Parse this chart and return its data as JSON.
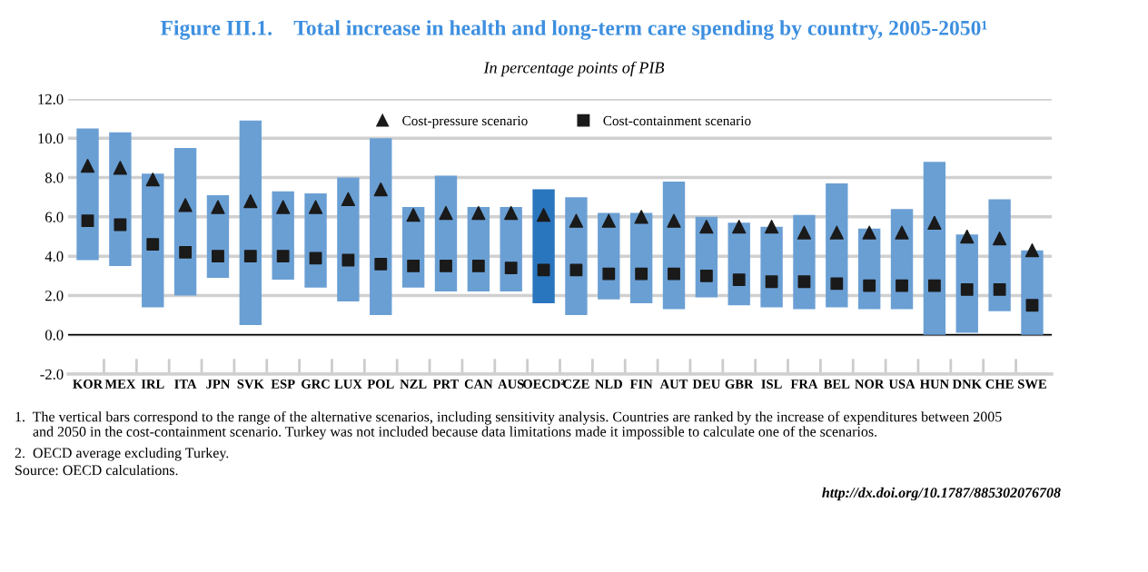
{
  "chart_data": {
    "type": "bar",
    "title": "Figure III.1.    Total increase in health and long-term care spending by country, 2005-2050¹",
    "subtitle": "In percentage points of PIB",
    "categories": [
      "KOR",
      "MEX",
      "IRL",
      "ITA",
      "JPN",
      "SVK",
      "ESP",
      "GRC",
      "LUX",
      "POL",
      "NZL",
      "PRT",
      "CAN",
      "AUS",
      "OECD²",
      "CZE",
      "NLD",
      "FIN",
      "AUT",
      "DEU",
      "GBR",
      "ISL",
      "FRA",
      "BEL",
      "NOR",
      "USA",
      "HUN",
      "DNK",
      "CHE",
      "SWE"
    ],
    "series": [
      {
        "colors": [
          "#6a9fd4",
          "#6a9fd4",
          "#6a9fd4",
          "#6a9fd4",
          "#6a9fd4",
          "#6a9fd4",
          "#6a9fd4",
          "#6a9fd4",
          "#6a9fd4",
          "#6a9fd4",
          "#6a9fd4",
          "#6a9fd4",
          "#6a9fd4",
          "#6a9fd4",
          "#2a76be",
          "#6a9fd4",
          "#6a9fd4",
          "#6a9fd4",
          "#6a9fd4",
          "#6a9fd4",
          "#6a9fd4",
          "#6a9fd4",
          "#6a9fd4",
          "#6a9fd4",
          "#6a9fd4",
          "#6a9fd4",
          "#6a9fd4",
          "#6a9fd4",
          "#6a9fd4",
          "#6a9fd4"
        ],
        "base": [
          3.8,
          3.5,
          1.4,
          2.0,
          2.9,
          0.5,
          2.8,
          2.4,
          1.7,
          1.0,
          2.4,
          2.2,
          2.2,
          2.2,
          1.6,
          1.0,
          1.8,
          1.6,
          1.3,
          1.9,
          1.5,
          1.4,
          1.3,
          1.4,
          1.3,
          1.3,
          0.0,
          0.1,
          1.2,
          0.0
        ],
        "values": [
          6.7,
          6.8,
          6.8,
          7.5,
          4.2,
          10.4,
          4.5,
          4.8,
          6.3,
          9.0,
          4.1,
          5.9,
          4.3,
          4.3,
          5.8,
          6.0,
          4.4,
          4.6,
          6.5,
          4.1,
          4.2,
          4.1,
          4.8,
          6.3,
          4.1,
          5.1,
          8.8,
          5.0,
          5.7,
          4.3
        ]
      },
      {
        "type": "scatter",
        "name": "Cost-pressure scenario",
        "color": "#1a1a1a",
        "marker": "triangle",
        "x": [
          "KOR",
          "MEX",
          "IRL",
          "ITA",
          "JPN",
          "SVK",
          "ESP",
          "GRC",
          "LUX",
          "POL",
          "NZL",
          "PRT",
          "CAN",
          "AUS",
          "OECD²",
          "CZE",
          "NLD",
          "FIN",
          "AUT",
          "DEU",
          "GBR",
          "ISL",
          "FRA",
          "BEL",
          "NOR",
          "USA",
          "HUN",
          "DNK",
          "CHE",
          "SWE"
        ],
        "values": [
          8.6,
          8.5,
          7.9,
          6.6,
          6.5,
          6.8,
          6.5,
          6.5,
          6.9,
          7.4,
          6.1,
          6.2,
          6.2,
          6.2,
          6.1,
          5.8,
          5.8,
          6.0,
          5.8,
          5.5,
          5.5,
          5.5,
          5.2,
          5.2,
          5.2,
          5.2,
          5.7,
          5.0,
          4.9,
          4.3
        ]
      },
      {
        "type": "scatter",
        "name": "Cost-containment scenario",
        "color": "#1a1a1a",
        "marker": "square",
        "x": [
          "KOR",
          "MEX",
          "IRL",
          "ITA",
          "JPN",
          "SVK",
          "ESP",
          "GRC",
          "LUX",
          "POL",
          "NZL",
          "PRT",
          "CAN",
          "AUS",
          "OECD²",
          "CZE",
          "NLD",
          "FIN",
          "AUT",
          "DEU",
          "GBR",
          "ISL",
          "FRA",
          "BEL",
          "NOR",
          "USA",
          "HUN",
          "DNK",
          "CHE",
          "SWE"
        ],
        "values": [
          5.8,
          5.6,
          4.6,
          4.2,
          4.0,
          4.0,
          4.0,
          3.9,
          3.8,
          3.6,
          3.5,
          3.5,
          3.5,
          3.4,
          3.3,
          3.3,
          3.1,
          3.1,
          3.1,
          3.0,
          2.8,
          2.7,
          2.7,
          2.6,
          2.5,
          2.5,
          2.5,
          2.3,
          2.3,
          1.5
        ]
      }
    ],
    "ylim": [
      -2,
      12
    ],
    "yticks": [
      {
        "value": -2,
        "label": "-2.0"
      },
      {
        "value": 0,
        "label": "0.0"
      },
      {
        "value": 2,
        "label": "2.0"
      },
      {
        "value": 4,
        "label": "4.0"
      },
      {
        "value": 6,
        "label": "6.0"
      },
      {
        "value": 8,
        "label": "8.0"
      },
      {
        "value": 10,
        "label": "10.0"
      },
      {
        "value": 12,
        "label": "12.0"
      }
    ],
    "ref_lines": [
      {
        "axis": "y",
        "value": 0,
        "color": "#000000"
      }
    ],
    "grid": "y",
    "legend": "top",
    "annotations": [
      "1.  The vertical bars correspond to the range of the alternative scenarios, including sensitivity analysis. Countries are ranked by the increase of expenditures between 2005\n     and 2050 in the cost-containment scenario. Turkey was not included because data limitations made it impossible to calculate one of the scenarios.",
      "2.  OECD average excluding Turkey.",
      "Source: OECD calculations.",
      "http://dx.doi.org/10.1787/885302076708"
    ]
  }
}
